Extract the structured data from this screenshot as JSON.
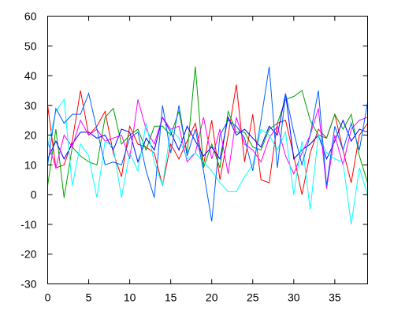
{
  "chart_data": {
    "type": "line",
    "title": "",
    "xlabel": "",
    "ylabel": "",
    "xlim": [
      0,
      39
    ],
    "ylim": [
      -30,
      60
    ],
    "xticks": [
      0,
      5,
      10,
      15,
      20,
      25,
      30,
      35
    ],
    "yticks": [
      -30,
      -20,
      -10,
      0,
      10,
      20,
      30,
      40,
      50,
      60
    ],
    "grid": false,
    "legend": "none",
    "x": [
      0,
      1,
      2,
      3,
      4,
      5,
      6,
      7,
      8,
      9,
      10,
      11,
      12,
      13,
      14,
      15,
      16,
      17,
      18,
      19,
      20,
      21,
      22,
      23,
      24,
      25,
      26,
      27,
      28,
      29,
      30,
      31,
      32,
      33,
      34,
      35,
      36,
      37,
      38,
      39
    ],
    "series": [
      {
        "color": "#ff0000",
        "values": [
          30,
          9,
          10,
          18,
          35,
          20,
          23,
          28,
          14,
          6,
          23,
          17,
          16,
          14,
          3,
          17,
          12,
          18,
          24,
          10,
          25,
          5,
          20,
          37,
          11,
          27,
          5,
          4,
          24,
          25,
          13,
          0,
          14,
          22,
          19,
          27,
          15,
          4,
          20,
          24
        ]
      },
      {
        "color": "#00a000",
        "values": [
          3,
          22,
          -1,
          16,
          13,
          11,
          10,
          26,
          29,
          17,
          20,
          22,
          15,
          23,
          23,
          20,
          28,
          14,
          43,
          9,
          17,
          9,
          28,
          21,
          21,
          16,
          15,
          22,
          24,
          32,
          33,
          35,
          25,
          20,
          19,
          27,
          22,
          27,
          13,
          4
        ]
      },
      {
        "color": "#0000ff",
        "values": [
          12,
          18,
          12,
          17,
          21,
          21,
          19,
          20,
          15,
          22,
          21,
          11,
          19,
          15,
          26,
          21,
          15,
          23,
          18,
          13,
          16,
          12,
          26,
          20,
          22,
          19,
          16,
          23,
          20,
          34,
          12,
          15,
          17,
          20,
          12,
          18,
          25,
          18,
          22,
          21
        ]
      },
      {
        "color": "#ff00ff",
        "values": [
          18,
          9,
          20,
          16,
          25,
          20,
          22,
          18,
          19,
          20,
          12,
          32,
          22,
          17,
          26,
          22,
          23,
          11,
          14,
          26,
          12,
          22,
          7,
          26,
          17,
          15,
          11,
          19,
          23,
          13,
          7,
          14,
          20,
          29,
          2,
          20,
          10,
          22,
          25,
          26
        ]
      },
      {
        "color": "#00ffff",
        "values": [
          16,
          28,
          32,
          3,
          17,
          13,
          -1,
          18,
          16,
          -1,
          14,
          8,
          24,
          11,
          3,
          22,
          19,
          12,
          14,
          11,
          8,
          4,
          1,
          1,
          6,
          10,
          22,
          20,
          15,
          21,
          0,
          18,
          -5,
          20,
          14,
          12,
          11,
          -10,
          9,
          0
        ]
      },
      {
        "color": "#0060ff",
        "values": [
          10,
          29,
          24,
          27,
          27,
          34,
          22,
          10,
          11,
          10,
          19,
          21,
          8,
          -1,
          30,
          14,
          30,
          13,
          22,
          8,
          -9,
          20,
          25,
          23,
          19,
          8,
          25,
          43,
          9,
          34,
          21,
          10,
          20,
          35,
          3,
          23,
          15,
          24,
          15,
          31
        ]
      }
    ]
  }
}
